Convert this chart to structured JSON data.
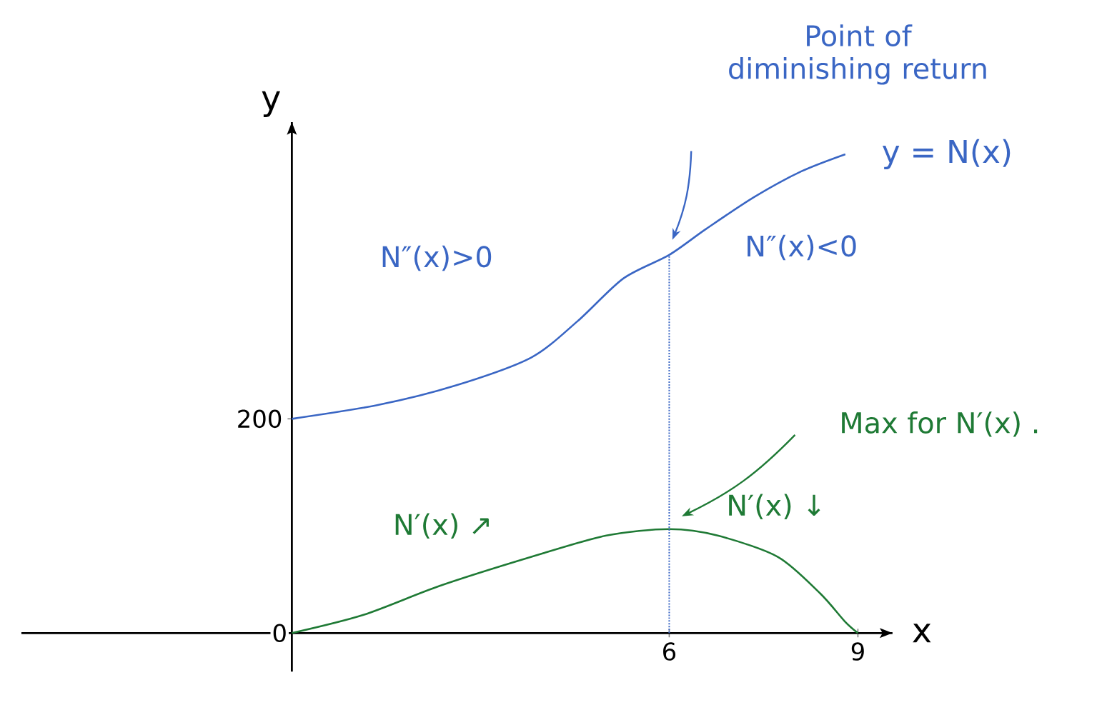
{
  "chart_data": {
    "type": "line",
    "xlabel": "x",
    "ylabel": "y",
    "xlim": [
      -4.3,
      9.55
    ],
    "ylim": [
      -36,
      477
    ],
    "xticks": [
      6,
      9
    ],
    "yticks": [
      0,
      200
    ],
    "series": [
      {
        "name": "y = N(x)",
        "color": "#3a66c4",
        "x": [
          0,
          1.38,
          2.6,
          3.8,
          4.54,
          5.27,
          6,
          6.58,
          7.35,
          8.1,
          8.8
        ],
        "values": [
          200,
          213,
          231,
          257,
          291,
          331,
          353,
          377,
          407,
          431,
          447
        ]
      },
      {
        "color": "#1f7a35",
        "x": [
          0,
          1.14,
          2.35,
          3.8,
          5,
          6,
          6.77,
          7.73,
          8.4,
          8.79,
          9
        ],
        "values": [
          0,
          17,
          44,
          71,
          91,
          97,
          91,
          71,
          37,
          11,
          0
        ]
      }
    ],
    "ref_lines": [
      {
        "axis": "x",
        "value": 6,
        "color": "#3a66c4",
        "line_style": "dotted"
      }
    ],
    "annotations": [
      "Point of diminishing return",
      "Max for N′(x) .",
      "N″(x)>0",
      "N″(x)<0",
      "N′(x) ↗",
      "N′(x) ↓"
    ],
    "grid": false,
    "legend": false
  }
}
